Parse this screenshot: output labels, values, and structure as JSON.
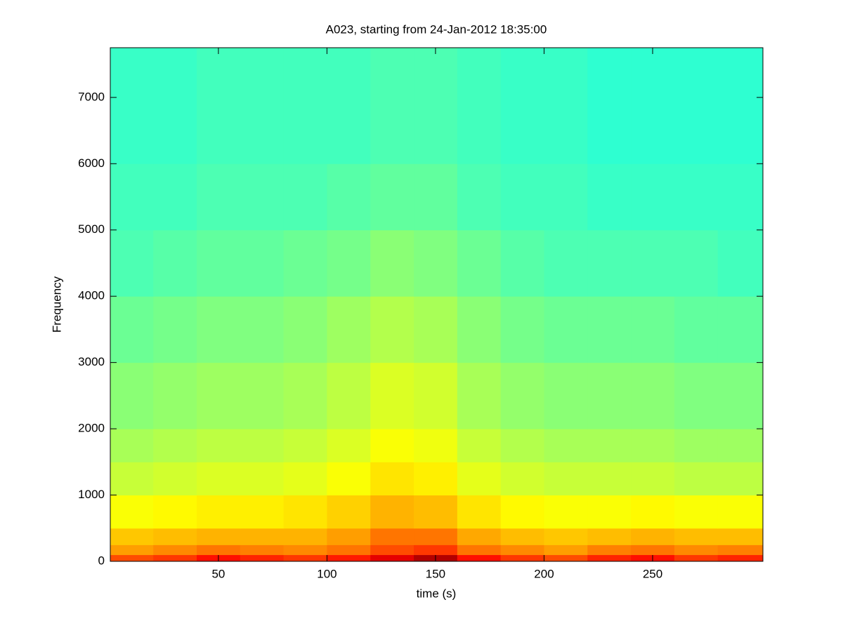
{
  "chart_data": {
    "type": "heatmap",
    "title": "A023, starting from 24-Jan-2012 18:35:00",
    "x_label": "time (s)",
    "y_label": "Frequency",
    "colormap": "jet",
    "clim": [
      0,
      1
    ],
    "x_edges": [
      0.2,
      20,
      40,
      60,
      80,
      100,
      120,
      140,
      160,
      180,
      200,
      220,
      240,
      260,
      280,
      300.8
    ],
    "y_edges": [
      0,
      100,
      250,
      500,
      1000,
      1500,
      2000,
      3000,
      4000,
      5000,
      6000,
      7750
    ],
    "values": [
      [
        0.8,
        0.82,
        0.86,
        0.84,
        0.82,
        0.85,
        0.9,
        0.95,
        0.86,
        0.82,
        0.8,
        0.84,
        0.86,
        0.82,
        0.84
      ],
      [
        0.72,
        0.74,
        0.76,
        0.75,
        0.74,
        0.76,
        0.8,
        0.82,
        0.76,
        0.74,
        0.72,
        0.75,
        0.76,
        0.74,
        0.75
      ],
      [
        0.68,
        0.69,
        0.7,
        0.7,
        0.7,
        0.72,
        0.76,
        0.76,
        0.71,
        0.69,
        0.68,
        0.69,
        0.7,
        0.69,
        0.69
      ],
      [
        0.62,
        0.63,
        0.64,
        0.64,
        0.65,
        0.67,
        0.7,
        0.69,
        0.65,
        0.63,
        0.62,
        0.62,
        0.63,
        0.62,
        0.62
      ],
      [
        0.57,
        0.58,
        0.59,
        0.59,
        0.6,
        0.62,
        0.65,
        0.64,
        0.6,
        0.58,
        0.57,
        0.57,
        0.57,
        0.56,
        0.56
      ],
      [
        0.54,
        0.55,
        0.56,
        0.56,
        0.57,
        0.59,
        0.62,
        0.61,
        0.57,
        0.55,
        0.54,
        0.54,
        0.54,
        0.53,
        0.53
      ],
      [
        0.51,
        0.52,
        0.53,
        0.53,
        0.54,
        0.56,
        0.59,
        0.58,
        0.54,
        0.52,
        0.51,
        0.51,
        0.51,
        0.5,
        0.5
      ],
      [
        0.48,
        0.49,
        0.5,
        0.5,
        0.51,
        0.53,
        0.55,
        0.54,
        0.51,
        0.49,
        0.48,
        0.48,
        0.48,
        0.47,
        0.47
      ],
      [
        0.45,
        0.46,
        0.47,
        0.47,
        0.48,
        0.49,
        0.51,
        0.5,
        0.48,
        0.46,
        0.45,
        0.45,
        0.45,
        0.45,
        0.44
      ],
      [
        0.44,
        0.44,
        0.45,
        0.45,
        0.45,
        0.46,
        0.47,
        0.47,
        0.45,
        0.44,
        0.44,
        0.43,
        0.43,
        0.43,
        0.43
      ],
      [
        0.43,
        0.43,
        0.44,
        0.44,
        0.44,
        0.44,
        0.45,
        0.45,
        0.44,
        0.43,
        0.43,
        0.42,
        0.42,
        0.42,
        0.42
      ]
    ],
    "xlim": [
      0.2,
      300.8
    ],
    "xticks": [
      50,
      100,
      150,
      200,
      250
    ],
    "ylim": [
      0,
      7750
    ],
    "yticks": [
      0,
      1000,
      2000,
      3000,
      4000,
      5000,
      6000,
      7000
    ]
  }
}
